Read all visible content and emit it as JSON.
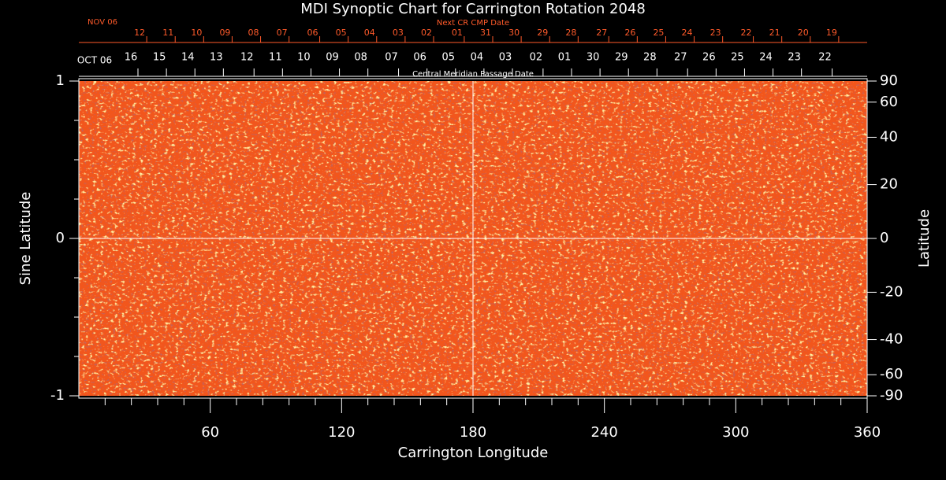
{
  "chart_data": {
    "type": "image",
    "title": "MDI Synoptic Chart for Carrington Rotation 2048",
    "xlabel": "Carrington Longitude",
    "ylabel": "Sine Latitude",
    "y2label": "Latitude",
    "xlim": [
      0,
      360
    ],
    "xticks": [
      60,
      120,
      180,
      240,
      300,
      360
    ],
    "xminorticks": [
      12,
      24,
      36,
      48,
      72,
      84,
      96,
      108,
      132,
      144,
      156,
      168,
      192,
      204,
      216,
      228,
      252,
      264,
      276,
      288,
      312,
      324,
      336,
      348
    ],
    "ylim": [
      -1,
      1
    ],
    "yticks": [
      -1,
      0,
      1
    ],
    "yminorticks": [
      -0.75,
      -0.5,
      -0.25,
      0.25,
      0.5,
      0.75
    ],
    "y2lim": [
      -90,
      90
    ],
    "y2scale": "sine",
    "y2ticks": [
      90,
      60,
      40,
      20,
      0,
      -20,
      -40,
      -60,
      -90
    ],
    "crosshair": {
      "x": 180,
      "y": 0
    },
    "background_color": "#f2561c",
    "top_axis_1": {
      "title": "Next CR CMP Date",
      "start_label": "NOV 06",
      "color": "#ff5a2a",
      "ticks": [
        {
          "value": 31,
          "label": "12"
        },
        {
          "value": 44,
          "label": "11"
        },
        {
          "value": 57,
          "label": "10"
        },
        {
          "value": 70,
          "label": "09"
        },
        {
          "value": 83,
          "label": "08"
        },
        {
          "value": 96,
          "label": "07"
        },
        {
          "value": 110,
          "label": "06"
        },
        {
          "value": 123,
          "label": "05"
        },
        {
          "value": 136,
          "label": "04"
        },
        {
          "value": 149,
          "label": "03"
        },
        {
          "value": 162,
          "label": "02"
        },
        {
          "value": 176,
          "label": "01"
        },
        {
          "value": 189,
          "label": "31"
        },
        {
          "value": 202,
          "label": "30"
        },
        {
          "value": 215,
          "label": "29"
        },
        {
          "value": 228,
          "label": "28"
        },
        {
          "value": 242,
          "label": "27"
        },
        {
          "value": 255,
          "label": "26"
        },
        {
          "value": 268,
          "label": "25"
        },
        {
          "value": 281,
          "label": "24"
        },
        {
          "value": 294,
          "label": "23"
        },
        {
          "value": 308,
          "label": "22"
        },
        {
          "value": 321,
          "label": "21"
        },
        {
          "value": 334,
          "label": "20"
        },
        {
          "value": 347,
          "label": "19"
        }
      ]
    },
    "top_axis_2": {
      "title": "Central Meridian Passage Date",
      "start_label": "OCT 06",
      "color": "#ffffff",
      "ticks": [
        {
          "value": 27,
          "label": "16"
        },
        {
          "value": 40,
          "label": "15"
        },
        {
          "value": 53,
          "label": "14"
        },
        {
          "value": 66,
          "label": "13"
        },
        {
          "value": 80,
          "label": "12"
        },
        {
          "value": 93,
          "label": "11"
        },
        {
          "value": 106,
          "label": "10"
        },
        {
          "value": 119,
          "label": "09"
        },
        {
          "value": 132,
          "label": "08"
        },
        {
          "value": 146,
          "label": "07"
        },
        {
          "value": 159,
          "label": "06"
        },
        {
          "value": 172,
          "label": "05"
        },
        {
          "value": 185,
          "label": "04"
        },
        {
          "value": 198,
          "label": "03"
        },
        {
          "value": 212,
          "label": "02"
        },
        {
          "value": 225,
          "label": "01"
        },
        {
          "value": 238,
          "label": "30"
        },
        {
          "value": 251,
          "label": "29"
        },
        {
          "value": 264,
          "label": "28"
        },
        {
          "value": 278,
          "label": "27"
        },
        {
          "value": 291,
          "label": "26"
        },
        {
          "value": 304,
          "label": "25"
        },
        {
          "value": 317,
          "label": "24"
        },
        {
          "value": 330,
          "label": "23"
        },
        {
          "value": 344,
          "label": "22"
        }
      ]
    }
  }
}
